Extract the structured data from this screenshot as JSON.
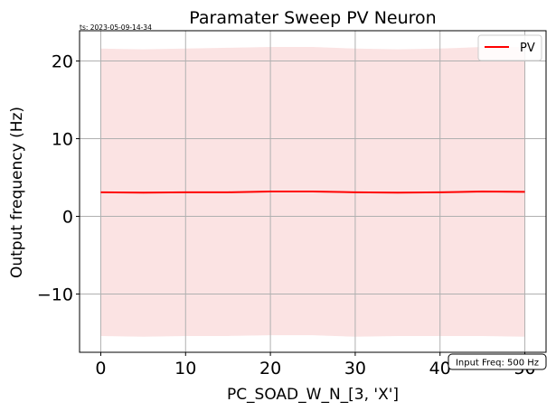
{
  "timestamp": "ts: 2023-05-09-14-34",
  "note": "Input Freq: 500 Hz",
  "chart_data": {
    "type": "line",
    "title": "Paramater Sweep PV Neuron",
    "xlabel": "PC_SOAD_W_N_[3, 'X']",
    "ylabel": "Output frequency (Hz)",
    "xlim": [
      -2.5,
      52.5
    ],
    "ylim": [
      -17.5,
      23.9
    ],
    "xticks": [
      0,
      10,
      20,
      30,
      40,
      50
    ],
    "xtick_labels": [
      "0",
      "10",
      "20",
      "30",
      "40",
      "50"
    ],
    "yticks": [
      -10,
      0,
      10,
      20
    ],
    "ytick_labels": [
      "−10",
      "0",
      "10",
      "20"
    ],
    "grid": true,
    "legend_position": "top-right",
    "series": [
      {
        "name": "PV",
        "color": "#ff0000",
        "band_color": "#fbe3e3",
        "x": [
          0,
          5,
          10,
          15,
          20,
          25,
          30,
          35,
          40,
          45,
          50
        ],
        "y": [
          3.1,
          3.05,
          3.1,
          3.1,
          3.2,
          3.2,
          3.1,
          3.05,
          3.1,
          3.2,
          3.15
        ],
        "upper": [
          21.6,
          21.5,
          21.6,
          21.7,
          21.8,
          21.8,
          21.6,
          21.5,
          21.6,
          21.8,
          21.8
        ],
        "lower": [
          -15.4,
          -15.5,
          -15.4,
          -15.4,
          -15.3,
          -15.3,
          -15.5,
          -15.4,
          -15.4,
          -15.4,
          -15.5
        ]
      }
    ]
  }
}
